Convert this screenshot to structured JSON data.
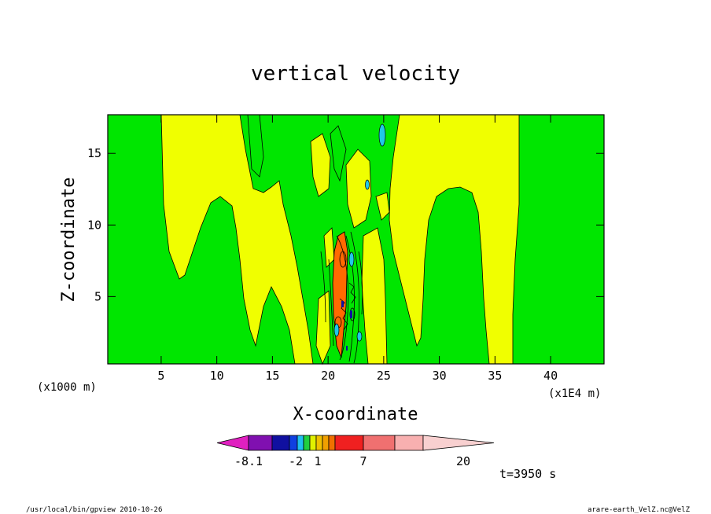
{
  "chart_data": {
    "type": "heatmap",
    "title": "vertical velocity",
    "xlabel": "X-coordinate",
    "ylabel": "Z-coordinate",
    "x_scale_label": "(x1000 m)",
    "x_unit_label": "(x1E4 m)",
    "xlim": [
      0.2,
      44.8
    ],
    "ylim": [
      0.3,
      17.7
    ],
    "x_ticks": [
      5,
      10,
      15,
      20,
      25,
      30,
      35,
      40
    ],
    "x_tick_labels": [
      "5",
      "10",
      "15",
      "20",
      "25",
      "30",
      "35",
      "40"
    ],
    "y_ticks": [
      5,
      10,
      15
    ],
    "y_tick_labels": [
      "5",
      "10",
      "15"
    ],
    "colorbar": {
      "colors": [
        "#e020c0",
        "#8010b0",
        "#1010a0",
        "#1040e0",
        "#20c0f0",
        "#20d040",
        "#e0f000",
        "#f0c000",
        "#f0a000",
        "#f07000",
        "#f02020",
        "#f07070",
        "#f8b0b0",
        "#f8d0d0"
      ],
      "labels": [
        "-8.1",
        "-2",
        "1",
        "7",
        "20"
      ]
    },
    "time_label": "t=3950 s",
    "fill_colors": {
      "background": "#00e600",
      "positive": "#f0ff00",
      "updraft_core": "#ff6a00",
      "downdraft": "#20c8e8"
    }
  },
  "footer": {
    "left": "/usr/local/bin/gpview  2010-10-26",
    "right": "arare-earth_VelZ.nc@VelZ"
  }
}
